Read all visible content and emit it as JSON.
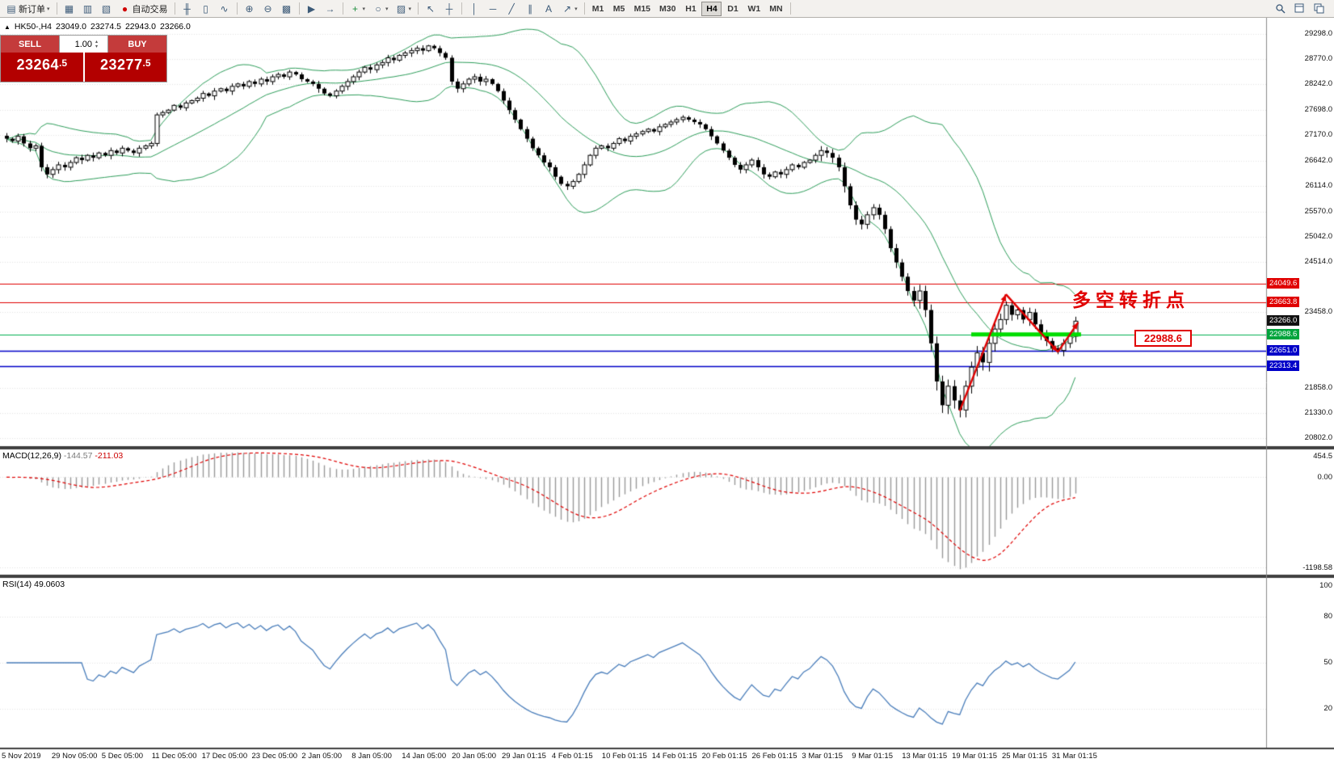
{
  "colors": {
    "toolbar_bg": "#f3f1ee",
    "chart_bg": "#ffffff",
    "grid": "#e4e4e4",
    "candle": "#000000",
    "bollinger": "#2e9e5b",
    "level_red": "#e00000",
    "level_green": "#00b050",
    "level_green_bright": "#00dd00",
    "level_blue": "#0000c8",
    "macd_hist": "#999999",
    "macd_signal": "#e00000",
    "rsi_line": "#4a7ebb",
    "trade_red": "#b30000",
    "annotation_red": "#e00000"
  },
  "toolbar": {
    "caret_glyph": "▾",
    "items": [
      {
        "name": "new-order-button",
        "glyph": "▤",
        "label": "新订单",
        "dropdown": true
      },
      {
        "type": "sep"
      },
      {
        "name": "market-watch-button",
        "glyph": "▦"
      },
      {
        "name": "data-window-button",
        "glyph": "▥"
      },
      {
        "name": "navigator-button",
        "glyph": "▧"
      },
      {
        "name": "autotrading-button",
        "glyph": "●",
        "glyph_color": "#d00000",
        "label": "自动交易"
      },
      {
        "type": "sep"
      },
      {
        "name": "bar-chart-button",
        "glyph": "╫"
      },
      {
        "name": "candlestick-chart-button",
        "glyph": "▯"
      },
      {
        "name": "line-chart-button",
        "glyph": "∿"
      },
      {
        "type": "sep"
      },
      {
        "name": "zoom-in-button",
        "glyph": "⊕"
      },
      {
        "name": "zoom-out-button",
        "glyph": "⊖"
      },
      {
        "name": "tile-windows-button",
        "glyph": "▩"
      },
      {
        "type": "sep"
      },
      {
        "name": "auto-scroll-button",
        "glyph": "▶"
      },
      {
        "name": "chart-shift-button",
        "glyph": "→"
      },
      {
        "type": "sep"
      },
      {
        "name": "indicators-button",
        "glyph": "+",
        "glyph_color": "#1e8e3e",
        "dropdown": true
      },
      {
        "name": "periods-button",
        "glyph": "○",
        "dropdown": true
      },
      {
        "name": "templates-button",
        "glyph": "▨",
        "dropdown": true
      },
      {
        "type": "sep"
      },
      {
        "name": "cursor-button",
        "glyph": "↖"
      },
      {
        "name": "crosshair-button",
        "glyph": "┼"
      },
      {
        "type": "sep"
      },
      {
        "name": "vertical-line-button",
        "glyph": "│"
      },
      {
        "name": "horizontal-line-button",
        "glyph": "─"
      },
      {
        "name": "trendline-button",
        "glyph": "╱"
      },
      {
        "name": "channel-button",
        "glyph": "∥"
      },
      {
        "name": "text-tool-button",
        "glyph": "A"
      },
      {
        "name": "arrow-tool-button",
        "glyph": "↗",
        "dropdown": true
      },
      {
        "type": "sep"
      }
    ],
    "timeframes": [
      {
        "label": "M1"
      },
      {
        "label": "M5"
      },
      {
        "label": "M15"
      },
      {
        "label": "M30"
      },
      {
        "label": "H1"
      },
      {
        "label": "H4",
        "active": true
      },
      {
        "label": "D1"
      },
      {
        "label": "W1"
      },
      {
        "label": "MN"
      }
    ]
  },
  "symbol_info": {
    "arrow": "▲",
    "symbol": "HK50-,H4",
    "open": "23049.0",
    "high": "23274.5",
    "low": "22943.0",
    "close": "23266.0"
  },
  "trade_panel": {
    "sell_label": "SELL",
    "buy_label": "BUY",
    "volume": "1.00",
    "spin_up": "▴",
    "spin_down": "▾",
    "sell_price_main": "23264",
    "sell_price_frac": ".5",
    "buy_price_main": "23277",
    "buy_price_frac": ".5"
  },
  "annotations": {
    "turning_point": "多空转折点",
    "price_tag": "22988.6"
  },
  "price_axis": {
    "ticks": [
      "29298.0",
      "28770.0",
      "28242.0",
      "27698.0",
      "27170.0",
      "26642.0",
      "26114.0",
      "25570.0",
      "25042.0",
      "24514.0",
      "23458.0",
      "21858.0",
      "21330.0",
      "20802.0"
    ],
    "level_labels": [
      {
        "text": "24049.6",
        "price": 24049.6,
        "bg": "#e00000"
      },
      {
        "text": "23663.8",
        "price": 23663.8,
        "bg": "#e00000"
      },
      {
        "text": "23266.0",
        "price": 23266.0,
        "bg": "#111111"
      },
      {
        "text": "22988.6",
        "price": 22988.6,
        "bg": "#00a43c"
      },
      {
        "text": "22651.0",
        "price": 22651.0,
        "bg": "#0000c8"
      },
      {
        "text": "22313.4",
        "price": 22313.4,
        "bg": "#0000c8"
      }
    ]
  },
  "indicators": {
    "macd": {
      "name": "MACD(12,26,9)",
      "value_main": "-144.57",
      "value_signal": "-211.03",
      "ticks": [
        "454.5",
        "0.00",
        "-1198.58"
      ]
    },
    "rsi": {
      "name": "RSI(14)",
      "value": "49.0603",
      "ticks": [
        "100",
        "80",
        "50",
        "20"
      ],
      "levels": [
        80,
        50,
        20
      ]
    }
  },
  "time_axis": {
    "labels": [
      "5 Nov 2019",
      "29 Nov 05:00",
      "5 Dec 05:00",
      "11 Dec 05:00",
      "17 Dec 05:00",
      "23 Dec 05:00",
      "2 Jan 05:00",
      "8 Jan 05:00",
      "14 Jan 05:00",
      "20 Jan 05:00",
      "29 Jan 01:15",
      "4 Feb 01:15",
      "10 Feb 01:15",
      "14 Feb 01:15",
      "20 Feb 01:15",
      "26 Feb 01:15",
      "3 Mar 01:15",
      "9 Mar 01:15",
      "13 Mar 01:15",
      "19 Mar 01:15",
      "25 Mar 01:15",
      "31 Mar 01:15"
    ]
  },
  "chart_data": {
    "type": "candlestick",
    "symbol": "HK50-",
    "timeframe": "H4",
    "header_ohlc": {
      "open": 23049.0,
      "high": 23274.5,
      "low": 22943.0,
      "close": 23266.0
    },
    "price_range": [
      20640,
      29640
    ],
    "closes": [
      27100,
      27050,
      27150,
      27000,
      26900,
      26950,
      26500,
      26350,
      26450,
      26550,
      26500,
      26600,
      26700,
      26650,
      26750,
      26700,
      26800,
      26750,
      26850,
      26800,
      26900,
      26850,
      26800,
      26900,
      26950,
      27000,
      27600,
      27650,
      27700,
      27800,
      27750,
      27850,
      27900,
      27950,
      28050,
      28000,
      28100,
      28150,
      28100,
      28200,
      28250,
      28200,
      28300,
      28250,
      28350,
      28300,
      28400,
      28450,
      28400,
      28500,
      28450,
      28350,
      28300,
      28250,
      28150,
      28050,
      28000,
      28100,
      28200,
      28300,
      28400,
      28500,
      28600,
      28550,
      28650,
      28700,
      28800,
      28750,
      28850,
      28900,
      28950,
      29000,
      28950,
      29050,
      29000,
      28900,
      28800,
      28300,
      28150,
      28250,
      28350,
      28400,
      28300,
      28350,
      28250,
      28100,
      27900,
      27700,
      27500,
      27300,
      27100,
      26900,
      26750,
      26600,
      26500,
      26300,
      26150,
      26100,
      26200,
      26350,
      26550,
      26750,
      26900,
      26950,
      26900,
      27000,
      27100,
      27050,
      27150,
      27200,
      27250,
      27300,
      27250,
      27350,
      27400,
      27450,
      27500,
      27550,
      27500,
      27450,
      27400,
      27300,
      27150,
      27000,
      26850,
      26700,
      26550,
      26450,
      26550,
      26650,
      26500,
      26350,
      26300,
      26400,
      26350,
      26450,
      26550,
      26500,
      26600,
      26650,
      26750,
      26850,
      26800,
      26700,
      26500,
      26100,
      25700,
      25400,
      25300,
      25500,
      25650,
      25500,
      25200,
      24800,
      24500,
      24200,
      23900,
      23700,
      23900,
      23500,
      22800,
      22000,
      21500,
      21900,
      21600,
      21400,
      21900,
      22300,
      22600,
      22400,
      22800,
      23100,
      23300,
      23600,
      23400,
      23500,
      23300,
      23450,
      23200,
      23000,
      22850,
      22700,
      22650,
      22800,
      22950,
      23266
    ],
    "indicator_params": {
      "bollinger": {
        "period": 20,
        "deviation": 2
      },
      "macd": {
        "fast": 12,
        "slow": 26,
        "signal": 9
      },
      "rsi": {
        "period": 14
      }
    },
    "levels": [
      {
        "price": 24049.6,
        "color": "red"
      },
      {
        "price": 23663.8,
        "color": "red"
      },
      {
        "price": 22988.6,
        "color": "green"
      },
      {
        "price": 22651.0,
        "color": "blue"
      },
      {
        "price": 22313.4,
        "color": "blue"
      }
    ],
    "current_price": 23266.0,
    "highlight_segment": {
      "price": 22988.6,
      "from": 167,
      "to": 186
    },
    "arrow": [
      [
        165,
        21380
      ],
      [
        173,
        23830
      ],
      [
        182,
        22620
      ],
      [
        185.5,
        23240
      ]
    ]
  }
}
